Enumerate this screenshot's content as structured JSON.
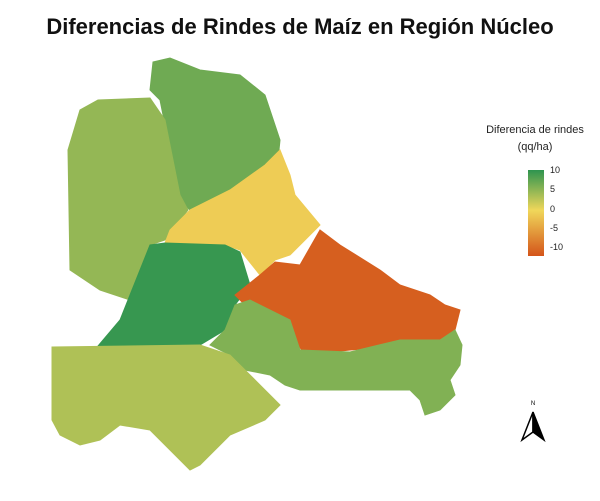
{
  "title": "Diferencias de Rindes de Maíz en Región Núcleo",
  "legend": {
    "title_line1": "Diferencia de rindes",
    "title_line2": "(qq/ha)",
    "ticks": [
      "10",
      "5",
      "0",
      "-5",
      "-10"
    ],
    "range": [
      -12,
      10.5
    ],
    "colors": {
      "low": "#d4541a",
      "mid": "#f0d75a",
      "high": "#2e944f"
    }
  },
  "north_arrow": {
    "label": "N"
  },
  "regions": [
    {
      "name": "north",
      "value": 7
    },
    {
      "name": "west",
      "value": 5
    },
    {
      "name": "center",
      "value": -1
    },
    {
      "name": "center-south",
      "value": 10
    },
    {
      "name": "east",
      "value": -11
    },
    {
      "name": "southeast",
      "value": 6
    },
    {
      "name": "south",
      "value": 3.5
    }
  ]
}
